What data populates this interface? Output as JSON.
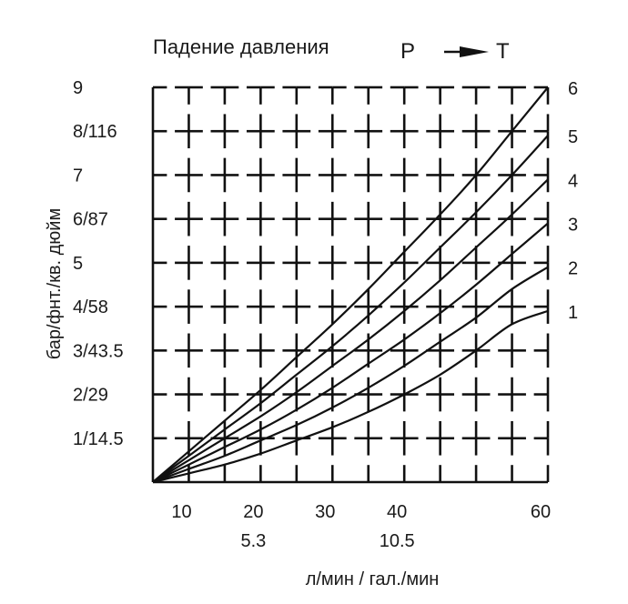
{
  "chart_data": {
    "type": "line",
    "title": "Падение давления",
    "flow_label_from": "P",
    "flow_label_to": "T",
    "xlabel": "л/мин / гал./мин",
    "ylabel": "бар/фнт./кв. дюйм",
    "xlim": [
      5,
      60
    ],
    "ylim": [
      0,
      9
    ],
    "x_ticks": [
      10,
      20,
      30,
      40,
      60
    ],
    "x_secondary_ticks": [
      {
        "x": 20,
        "label": "5.3"
      },
      {
        "x": 40,
        "label": "10.5"
      }
    ],
    "y_ticks": [
      {
        "y": 9,
        "label": "9"
      },
      {
        "y": 8,
        "label": "8/116"
      },
      {
        "y": 7,
        "label": "7"
      },
      {
        "y": 6,
        "label": "6/87"
      },
      {
        "y": 5,
        "label": "5"
      },
      {
        "y": 4,
        "label": "4/58"
      },
      {
        "y": 3,
        "label": "3/43.5"
      },
      {
        "y": 2,
        "label": "2/29"
      },
      {
        "y": 1,
        "label": "1/14.5"
      }
    ],
    "grid": true,
    "series": [
      {
        "name": "1",
        "x": [
          5,
          10,
          15,
          20,
          25,
          30,
          35,
          40,
          45,
          50,
          55,
          60
        ],
        "y": [
          0,
          0.2,
          0.4,
          0.65,
          0.95,
          1.25,
          1.6,
          2.0,
          2.45,
          3.0,
          3.6,
          3.9
        ]
      },
      {
        "name": "2",
        "x": [
          5,
          10,
          15,
          20,
          25,
          30,
          35,
          40,
          45,
          50,
          55,
          60
        ],
        "y": [
          0,
          0.3,
          0.6,
          0.95,
          1.3,
          1.7,
          2.15,
          2.65,
          3.2,
          3.75,
          4.4,
          4.9
        ]
      },
      {
        "name": "3",
        "x": [
          5,
          10,
          15,
          20,
          25,
          30,
          35,
          40,
          45,
          50,
          55,
          60
        ],
        "y": [
          0,
          0.4,
          0.8,
          1.2,
          1.65,
          2.15,
          2.7,
          3.25,
          3.85,
          4.5,
          5.2,
          5.9
        ]
      },
      {
        "name": "4",
        "x": [
          5,
          10,
          15,
          20,
          25,
          30,
          35,
          40,
          45,
          50,
          55,
          60
        ],
        "y": [
          0,
          0.5,
          1.0,
          1.5,
          2.05,
          2.65,
          3.25,
          3.9,
          4.6,
          5.35,
          6.1,
          6.9
        ]
      },
      {
        "name": "5",
        "x": [
          5,
          10,
          15,
          20,
          25,
          30,
          35,
          40,
          45,
          50,
          55,
          60
        ],
        "y": [
          0,
          0.6,
          1.2,
          1.8,
          2.45,
          3.1,
          3.8,
          4.55,
          5.35,
          6.15,
          7.0,
          7.9
        ]
      },
      {
        "name": "6",
        "x": [
          5,
          10,
          15,
          20,
          25,
          30,
          35,
          40,
          45,
          50,
          55,
          60
        ],
        "y": [
          0,
          0.7,
          1.4,
          2.1,
          2.85,
          3.6,
          4.4,
          5.25,
          6.1,
          7.0,
          8.0,
          9.0
        ]
      }
    ]
  }
}
